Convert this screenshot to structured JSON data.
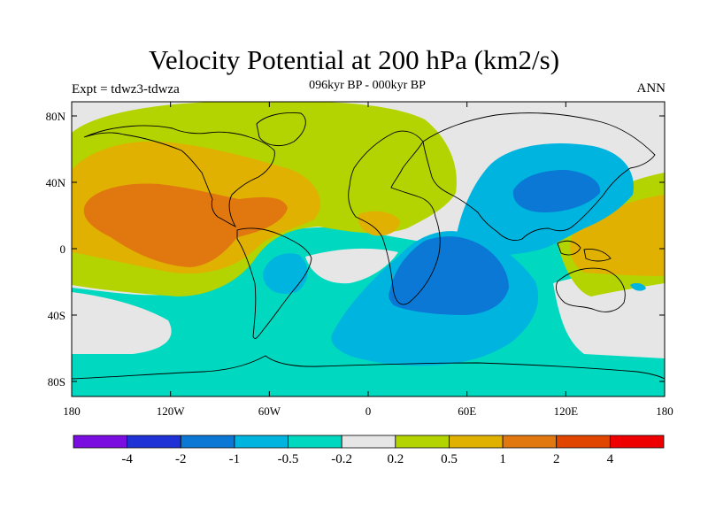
{
  "title": "Velocity Potential at 200 hPa (km2/s)",
  "subtitle": "096kyr BP - 000kyr BP",
  "left_label": "Expt = tdwz3-tdwza",
  "right_label": "ANN",
  "lat_labels": [
    "80N",
    "40N",
    "0",
    "40S",
    "80S"
  ],
  "lon_labels": [
    "180",
    "120W",
    "60W",
    "0",
    "60E",
    "120E",
    "180"
  ],
  "colorbar": {
    "colors": [
      "#7a0ee0",
      "#1f32d6",
      "#0a78d4",
      "#00b4e0",
      "#00d9bf",
      "#e6e6e6",
      "#b3d400",
      "#e0b100",
      "#e0780f",
      "#e04600",
      "#ef0000"
    ],
    "labels": [
      "-4",
      "-2",
      "-1",
      "-0.5",
      "-0.2",
      "0.2",
      "0.5",
      "1",
      "2",
      "4"
    ]
  },
  "fields": {
    "background": "#00d9bf",
    "neutral": "#e6e6e6",
    "weak_positive": "#b3d400",
    "positive": "#e0b100",
    "strong_positive": "#e0780f",
    "weak_negative": "#00b4e0",
    "negative": "#0a78d4"
  }
}
